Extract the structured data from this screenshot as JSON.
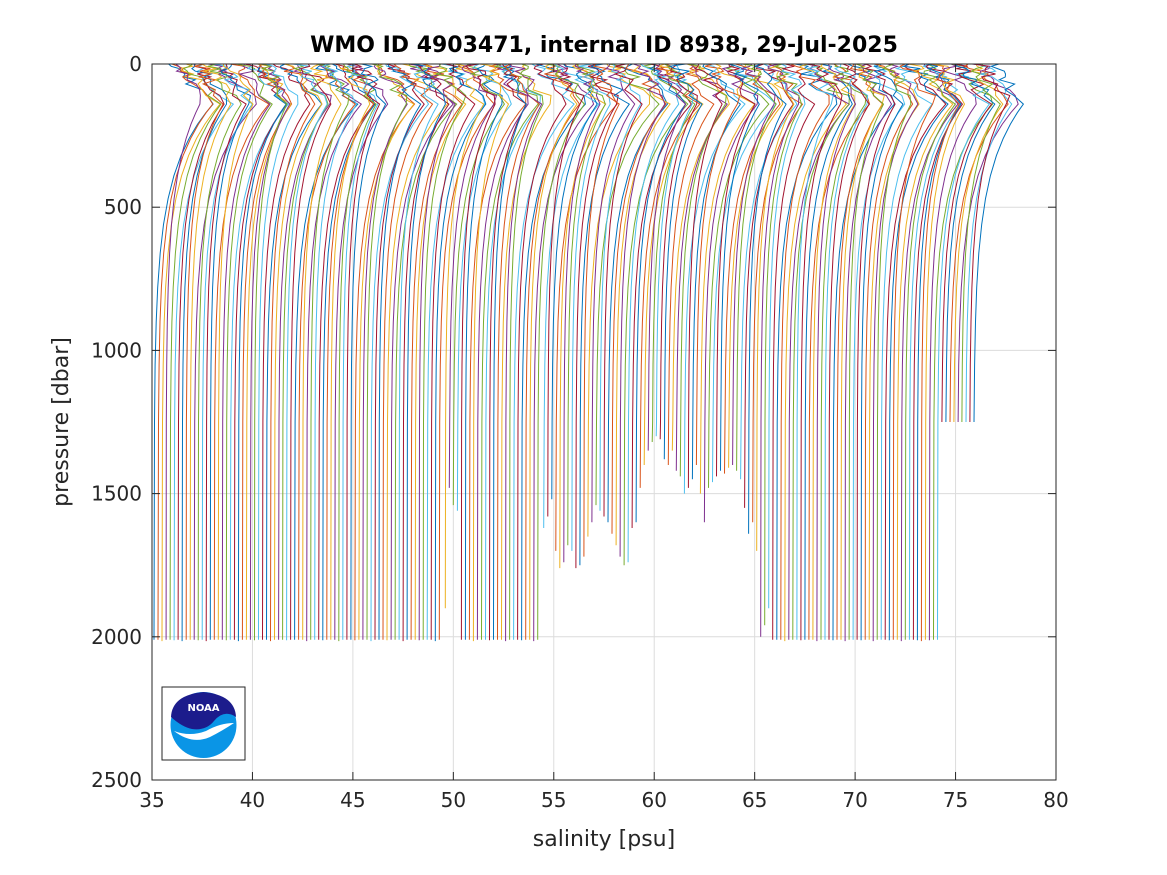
{
  "chart_data": {
    "type": "line",
    "title": "WMO ID 4903471, internal ID 8938, 29-Jul-2025",
    "xlabel": "salinity [psu]",
    "ylabel": "pressure [dbar]",
    "xlim": [
      35,
      80
    ],
    "ylim": [
      2500,
      0
    ],
    "y_reversed": true,
    "xticks": [
      35,
      40,
      45,
      50,
      55,
      60,
      65,
      70,
      75,
      80
    ],
    "xtick_labels": [
      "35",
      "40",
      "45",
      "50",
      "55",
      "60",
      "65",
      "70",
      "75",
      "80"
    ],
    "yticks": [
      0,
      500,
      1000,
      1500,
      2000,
      2500
    ],
    "ytick_labels": [
      "0",
      "500",
      "1000",
      "1500",
      "2000",
      "2500"
    ],
    "grid": true,
    "legend": "none",
    "series_colors": [
      "#0072bd",
      "#d95319",
      "#edb120",
      "#7e2f8e",
      "#77ac30",
      "#4dbeee",
      "#a2142f"
    ],
    "profiles": {
      "deep_salinity": [
        35.1,
        35.3,
        35.5,
        35.7,
        35.9,
        36.1,
        36.3,
        36.5,
        36.7,
        36.9,
        37.1,
        37.3,
        37.5,
        37.7,
        37.9,
        38.1,
        38.3,
        38.5,
        38.7,
        38.9,
        39.1,
        39.3,
        39.5,
        39.7,
        39.9,
        40.1,
        40.3,
        40.5,
        40.7,
        40.9,
        41.1,
        41.3,
        41.5,
        41.7,
        41.9,
        42.1,
        42.3,
        42.5,
        42.7,
        42.9,
        43.1,
        43.3,
        43.5,
        43.7,
        43.9,
        44.1,
        44.3,
        44.5,
        44.7,
        44.9,
        45.1,
        45.3,
        45.5,
        45.7,
        45.9,
        46.1,
        46.3,
        46.5,
        46.7,
        46.9,
        47.1,
        47.3,
        47.5,
        47.7,
        47.9,
        48.1,
        48.3,
        48.5,
        48.7,
        48.9,
        49.1,
        49.3,
        49.6,
        49.8,
        50.0,
        50.2,
        50.4,
        50.6,
        50.8,
        51.0,
        51.2,
        51.4,
        51.6,
        51.8,
        52.0,
        52.2,
        52.4,
        52.6,
        52.8,
        53.0,
        53.2,
        53.4,
        53.6,
        53.8,
        54.0,
        54.2,
        54.5,
        54.7,
        54.9,
        55.1,
        55.3,
        55.5,
        55.7,
        55.9,
        56.1,
        56.3,
        56.5,
        56.7,
        56.9,
        57.1,
        57.3,
        57.5,
        57.7,
        57.9,
        58.1,
        58.3,
        58.5,
        58.7,
        58.9,
        59.1,
        59.3,
        59.5,
        59.7,
        59.9,
        60.1,
        60.3,
        60.5,
        60.7,
        60.9,
        61.1,
        61.3,
        61.5,
        61.7,
        61.9,
        62.1,
        62.3,
        62.5,
        62.7,
        62.9,
        63.1,
        63.3,
        63.5,
        63.7,
        63.9,
        64.1,
        64.3,
        64.5,
        64.7,
        64.9,
        65.1,
        65.3,
        65.5,
        65.7,
        65.9,
        66.1,
        66.3,
        66.5,
        66.7,
        66.9,
        67.1,
        67.3,
        67.5,
        67.7,
        67.9,
        68.1,
        68.3,
        68.5,
        68.7,
        68.9,
        69.1,
        69.3,
        69.5,
        69.7,
        69.9,
        70.1,
        70.3,
        70.5,
        70.7,
        70.9,
        71.1,
        71.3,
        71.5,
        71.7,
        71.9,
        72.1,
        72.3,
        72.5,
        72.7,
        72.9,
        73.1,
        73.3,
        73.5,
        73.7,
        73.9,
        74.1,
        74.3,
        74.5,
        74.7,
        74.9,
        75.1,
        75.3,
        75.5,
        75.7,
        75.9
      ],
      "max_pressure": [
        2010,
        2010,
        2015,
        2010,
        2010,
        2012,
        2010,
        2015,
        2010,
        2010,
        2010,
        2012,
        2010,
        2015,
        2010,
        2010,
        2010,
        2010,
        2012,
        2010,
        2010,
        2015,
        2010,
        2010,
        2010,
        2012,
        2010,
        2010,
        2010,
        2015,
        2010,
        2010,
        2010,
        2012,
        2010,
        2010,
        2010,
        2010,
        2015,
        2010,
        2010,
        2010,
        2012,
        2010,
        2010,
        2010,
        2015,
        2010,
        2010,
        2010,
        2012,
        2010,
        2010,
        2010,
        2015,
        2010,
        2010,
        2010,
        2012,
        2010,
        2010,
        2010,
        2015,
        2010,
        2010,
        2010,
        2012,
        2010,
        2010,
        2010,
        2015,
        2010,
        1900,
        1480,
        1540,
        1560,
        2010,
        2010,
        2010,
        2015,
        2010,
        2010,
        2010,
        2012,
        2010,
        2010,
        2010,
        2015,
        2010,
        2010,
        2010,
        2012,
        2010,
        2010,
        2015,
        2010,
        1620,
        1580,
        1520,
        1700,
        1760,
        1740,
        1680,
        1700,
        1760,
        1750,
        1720,
        1650,
        1600,
        1540,
        1560,
        1580,
        1600,
        1640,
        1680,
        1720,
        1750,
        1740,
        1620,
        1600,
        1480,
        1400,
        1350,
        1320,
        1300,
        1310,
        1380,
        1400,
        1350,
        1420,
        1440,
        1500,
        1480,
        1450,
        1400,
        1500,
        1600,
        1480,
        1460,
        1440,
        1420,
        1430,
        1410,
        1400,
        1420,
        1450,
        1550,
        1640,
        1600,
        1700,
        2000,
        1960,
        1900,
        2010,
        2010,
        2010,
        2015,
        2010,
        2010,
        2010,
        2012,
        2010,
        2010,
        2010,
        2015,
        2010,
        2010,
        2010,
        2012,
        2010,
        2010,
        2015,
        2010,
        2010,
        2010,
        2012,
        2010,
        2010,
        2015,
        2010,
        2010,
        2010,
        2012,
        2010,
        2010,
        2015,
        2010,
        2010,
        2010,
        2012,
        2015,
        2010,
        2012,
        2010,
        2010
      ]
    }
  },
  "logo": {
    "name": "NOAA",
    "text": "NOAA",
    "colors": {
      "dark": "#1c1c8c",
      "light": "#0a95e6"
    }
  }
}
